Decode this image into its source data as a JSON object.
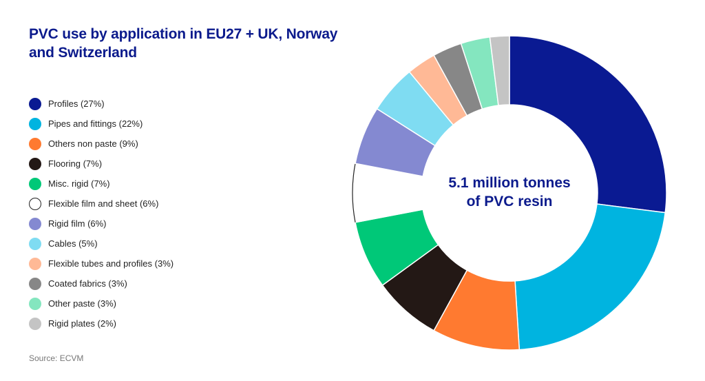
{
  "title_lines": [
    "PVC use by application in EU27 + UK, Norway",
    "and Switzerland"
  ],
  "source": "Source: ECVM",
  "center": {
    "line1": "5.1 million tonnes",
    "line2": "of PVC resin"
  },
  "chart_data": {
    "type": "pie",
    "subtype": "donut",
    "title": "PVC use by application in EU27 + UK, Norway and Switzerland",
    "center_text": "5.1 million tonnes of PVC resin",
    "unit": "%",
    "legend_position": "left",
    "categories": [
      "Profiles",
      "Pipes and fittings",
      "Others non paste",
      "Flooring",
      "Misc. rigid",
      "Flexible film and sheet",
      "Rigid film",
      "Cables",
      "Flexible tubes and profiles",
      "Coated fabrics",
      "Other paste",
      "Rigid plates"
    ],
    "values": [
      27,
      22,
      9,
      7,
      7,
      6,
      6,
      5,
      3,
      3,
      3,
      2
    ],
    "legend_labels": [
      "Profiles (27%)",
      "Pipes and fittings (22%)",
      "Others non paste (9%)",
      "Flooring (7%)",
      "Misc. rigid (7%)",
      "Flexible film and sheet (6%)",
      "Rigid film (6%)",
      "Cables (5%)",
      "Flexible tubes and profiles (3%)",
      "Coated fabrics (3%)",
      "Other paste (3%)",
      "Rigid plates (2%)"
    ],
    "colors": [
      "#0a1a92",
      "#00b4e0",
      "#ff7a30",
      "#231815",
      "#00c878",
      "#ffffff",
      "#8489d1",
      "#7fdcf2",
      "#ffb996",
      "#878787",
      "#84e6bf",
      "#c4c4c4"
    ],
    "outline_color": "#222222",
    "start_angle_deg": 0,
    "direction": "clockwise"
  }
}
